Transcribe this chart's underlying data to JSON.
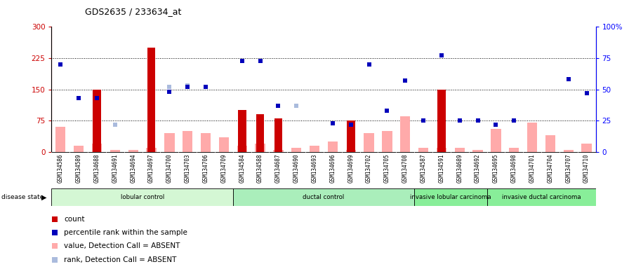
{
  "title": "GDS2635 / 233634_at",
  "samples": [
    "GSM134586",
    "GSM134589",
    "GSM134688",
    "GSM134691",
    "GSM134694",
    "GSM134697",
    "GSM134700",
    "GSM134703",
    "GSM134706",
    "GSM134709",
    "GSM134584",
    "GSM134588",
    "GSM134687",
    "GSM134690",
    "GSM134693",
    "GSM134696",
    "GSM134699",
    "GSM134702",
    "GSM134705",
    "GSM134708",
    "GSM134587",
    "GSM134591",
    "GSM134689",
    "GSM134692",
    "GSM134695",
    "GSM134698",
    "GSM134701",
    "GSM134704",
    "GSM134707",
    "GSM134710"
  ],
  "count_values": [
    0,
    0,
    150,
    0,
    0,
    250,
    0,
    0,
    0,
    0,
    100,
    90,
    80,
    0,
    0,
    0,
    75,
    0,
    0,
    0,
    0,
    150,
    0,
    0,
    0,
    0,
    0,
    0,
    0,
    0
  ],
  "value_absent": [
    60,
    15,
    20,
    5,
    5,
    10,
    45,
    50,
    45,
    35,
    15,
    20,
    5,
    10,
    15,
    25,
    5,
    45,
    50,
    85,
    10,
    10,
    10,
    5,
    55,
    10,
    70,
    40,
    5,
    20
  ],
  "pct_dark_idx": [
    0,
    1,
    2,
    6,
    7,
    8,
    10,
    11,
    12,
    15,
    16,
    17,
    18,
    19,
    20,
    21,
    22,
    23,
    24,
    25,
    28,
    29
  ],
  "pct_dark_val": [
    70,
    43,
    43,
    48,
    52,
    52,
    73,
    73,
    37,
    23,
    22,
    70,
    33,
    57,
    25,
    77,
    25,
    25,
    22,
    25,
    58,
    47
  ],
  "rank_abs_idx": [
    0,
    1,
    3,
    6,
    7,
    8,
    10,
    11,
    12,
    13,
    15,
    16,
    17,
    18,
    19,
    20,
    22,
    23,
    24,
    25,
    28,
    29
  ],
  "rank_abs_val": [
    70,
    43,
    22,
    52,
    53,
    52,
    73,
    73,
    37,
    37,
    23,
    22,
    70,
    33,
    57,
    25,
    25,
    25,
    22,
    25,
    58,
    47
  ],
  "disease_groups": [
    {
      "label": "lobular control",
      "start": 0,
      "end": 10,
      "color": "#d4f7d4"
    },
    {
      "label": "ductal control",
      "start": 10,
      "end": 20,
      "color": "#aaeebb"
    },
    {
      "label": "invasive lobular carcinoma",
      "start": 20,
      "end": 24,
      "color": "#88ee99"
    },
    {
      "label": "invasive ductal carcinoma",
      "start": 24,
      "end": 30,
      "color": "#88ee99"
    }
  ],
  "ylim_left": [
    0,
    300
  ],
  "ylim_right": [
    0,
    100
  ],
  "color_count": "#cc0000",
  "color_pct_dark": "#0000bb",
  "color_value_absent": "#ffaaaa",
  "color_rank_absent": "#aabbdd",
  "title_fontsize": 9,
  "legend_fontsize": 7.5
}
